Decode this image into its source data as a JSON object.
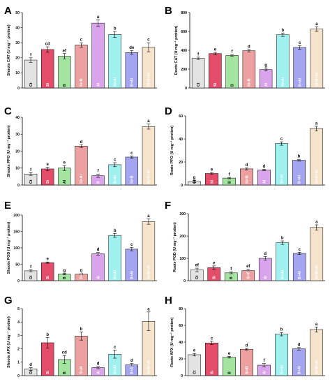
{
  "colors": {
    "fills": [
      "#e3e3e3",
      "#e44d6a",
      "#a2e4a0",
      "#eda0a0",
      "#d9a4ec",
      "#a0f0f0",
      "#a4a4f0",
      "#f6e3cc"
    ],
    "cat_label_dark": [
      "#000000",
      "#ffffff",
      "#000000",
      "#ffffff",
      "#ffffff",
      "#ffffff",
      "#ffffff",
      "#ffffff"
    ],
    "edge": "#000000"
  },
  "chart_data": [
    {
      "panel": "A",
      "type": "bar",
      "ylabel": "Shoots CAT (U mg⁻¹ protien)",
      "categories": [
        "Ct",
        "Si",
        "B",
        "Si+B",
        "Al",
        "Si+Al",
        "B+Al",
        "Si+B+Al"
      ],
      "values": [
        18.5,
        25.5,
        21,
        28.5,
        43,
        35.5,
        23.5,
        27
      ],
      "errors": [
        1.5,
        1.8,
        1.8,
        1.5,
        2.2,
        2.0,
        1.2,
        3.0
      ],
      "letters": [
        "f",
        "cd",
        "ef",
        "c",
        "a",
        "b",
        "de",
        "c"
      ],
      "ylim": [
        0,
        50
      ],
      "ticks": [
        0,
        10,
        20,
        30,
        40,
        50
      ]
    },
    {
      "panel": "B",
      "type": "bar",
      "ylabel": "Roots CAT (U mg⁻¹ protien)",
      "categories": [
        "Ct",
        "Si",
        "B",
        "Si+B",
        "Al",
        "Si+Al",
        "B+Al",
        "Si+B+Al"
      ],
      "values": [
        315,
        365,
        345,
        395,
        195,
        565,
        430,
        625
      ],
      "errors": [
        12,
        12,
        10,
        12,
        15,
        18,
        18,
        25
      ],
      "letters": [
        "f",
        "e",
        "f",
        "d",
        "g",
        "b",
        "c",
        "a"
      ],
      "ylim": [
        0,
        800
      ],
      "ticks": [
        0,
        200,
        400,
        600,
        800
      ]
    },
    {
      "panel": "C",
      "type": "bar",
      "ylabel": "Shoots PPO (U mg⁻¹ protien)",
      "categories": [
        "Ct",
        "Si",
        "Al",
        "Si+Al",
        "B",
        "B+Al",
        "Si+B",
        "Si+B+Al"
      ],
      "values": [
        6.5,
        9.5,
        10,
        23,
        5.5,
        12,
        16.5,
        34.5
      ],
      "errors": [
        0.8,
        1.0,
        1.5,
        0.8,
        1.0,
        1.2,
        0.6,
        1.5
      ],
      "letters": [
        "f",
        "e",
        "e",
        "d",
        "f",
        "c",
        "c",
        "a"
      ],
      "ylim": [
        0,
        40
      ],
      "ticks": [
        0,
        10,
        20,
        30,
        40
      ]
    },
    {
      "panel": "D",
      "type": "bar",
      "ylabel": "Roots PPO (U mg⁻¹ protien)",
      "categories": [
        "Ct",
        "Si",
        "B",
        "Si+B",
        "Al",
        "Si+Al",
        "B+Al",
        "Si+B+Al"
      ],
      "values": [
        3,
        10,
        6,
        14,
        13,
        36,
        21.5,
        49
      ],
      "errors": [
        1.0,
        0.8,
        0.6,
        0.8,
        0.6,
        1.5,
        0.8,
        2.0
      ],
      "letters": [
        "g",
        "e",
        "f",
        "d",
        "d",
        "c",
        "b",
        "a"
      ],
      "ylim": [
        0,
        60
      ],
      "ticks": [
        0,
        20,
        40,
        60
      ]
    },
    {
      "panel": "E",
      "type": "bar",
      "ylabel": "Shoots POD (U mg⁻¹ protien)",
      "categories": [
        "Ct",
        "Si",
        "B",
        "Si+B",
        "Al",
        "Si+Al",
        "B+Al",
        "Si+B+Al"
      ],
      "values": [
        30,
        55,
        20,
        20,
        82,
        138,
        96,
        180
      ],
      "errors": [
        3,
        2,
        2,
        2,
        4,
        6,
        5,
        8
      ],
      "letters": [
        "f",
        "e",
        "g",
        "g",
        "d",
        "b",
        "c",
        "a"
      ],
      "ylim": [
        0,
        200
      ],
      "ticks": [
        0,
        50,
        100,
        150,
        200
      ]
    },
    {
      "panel": "F",
      "type": "bar",
      "ylabel": "Roots POD (U mg⁻¹ protien)",
      "categories": [
        "Ct",
        "Si",
        "B",
        "Si+B",
        "Al",
        "Si+Al",
        "B+Al",
        "Si+B+Al"
      ],
      "values": [
        48,
        58,
        35,
        45,
        100,
        170,
        122,
        238
      ],
      "errors": [
        8,
        8,
        4,
        6,
        8,
        8,
        5,
        12
      ],
      "letters": [
        "ef",
        "e",
        "f",
        "ef",
        "d",
        "b",
        "c",
        "a"
      ],
      "ylim": [
        0,
        300
      ],
      "ticks": [
        0,
        100,
        200,
        300
      ]
    },
    {
      "panel": "G",
      "type": "bar",
      "ylabel": "Shoots APX (U mg⁻¹ protien)",
      "categories": [
        "Ct",
        "Si",
        "B",
        "Si+B",
        "Al",
        "Si+Al",
        "B+Al",
        "Si+B+Al"
      ],
      "values": [
        0.5,
        2.45,
        1.2,
        2.95,
        0.6,
        1.6,
        0.8,
        4.05
      ],
      "errors": [
        0.1,
        0.4,
        0.3,
        0.3,
        0.08,
        0.3,
        0.1,
        0.7
      ],
      "letters": [
        "d",
        "b",
        "cd",
        "b",
        "d",
        "c",
        "d",
        "a"
      ],
      "ylim": [
        0,
        5
      ],
      "ticks": [
        0,
        1,
        2,
        3,
        4,
        5
      ]
    },
    {
      "panel": "H",
      "type": "bar",
      "ylabel": "Roots APX (U mg⁻¹ protien)",
      "categories": [
        "Ct",
        "Si",
        "B",
        "Si+B",
        "Al",
        "Si+Al",
        "B+Al",
        "Si+B+Al"
      ],
      "values": [
        25,
        39,
        22,
        31.5,
        12.5,
        49.5,
        32,
        55
      ],
      "errors": [
        1.5,
        2,
        1,
        1,
        2,
        2,
        1.5,
        3
      ],
      "letters": [
        "e",
        "c",
        "e",
        "d",
        "f",
        "b",
        "d",
        "a"
      ],
      "ylim": [
        0,
        80
      ],
      "ticks": [
        0,
        20,
        40,
        60,
        80
      ]
    }
  ]
}
